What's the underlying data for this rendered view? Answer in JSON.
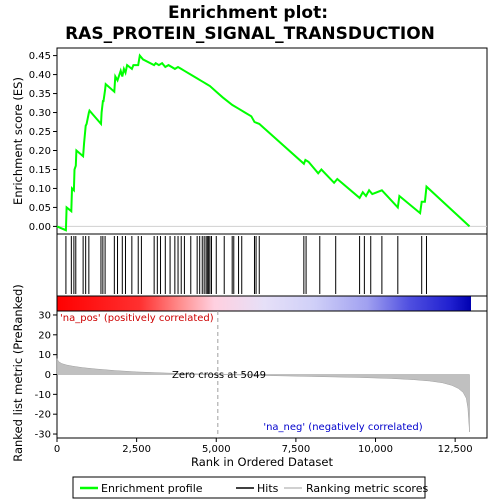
{
  "chart_data": [
    {
      "type": "line",
      "title_line1": "Enrichment plot:",
      "title_line2": "RAS_PROTEIN_SIGNAL_TRANSDUCTION",
      "ylabel": "Enrichment score (ES)",
      "xlim": [
        0,
        13500
      ],
      "ylim": [
        -0.02,
        0.47
      ],
      "yticks": [
        "0.00",
        "0.05",
        "0.10",
        "0.15",
        "0.20",
        "0.25",
        "0.30",
        "0.35",
        "0.40",
        "0.45"
      ],
      "ytick_values": [
        0,
        0.05,
        0.1,
        0.15,
        0.2,
        0.25,
        0.3,
        0.35,
        0.4,
        0.45
      ],
      "grid": false,
      "color": "#00ff00",
      "series": [
        {
          "name": "Enrichment profile",
          "x": [
            0,
            280,
            300,
            450,
            470,
            530,
            550,
            590,
            610,
            820,
            850,
            900,
            930,
            1000,
            1020,
            1380,
            1400,
            1440,
            1460,
            1510,
            1530,
            1800,
            1830,
            1900,
            2000,
            2050,
            2100,
            2150,
            2200,
            2350,
            2400,
            2550,
            2600,
            2700,
            3050,
            3100,
            3200,
            3300,
            3400,
            3500,
            3700,
            3800,
            3900,
            4000,
            4200,
            4400,
            4500,
            4600,
            4700,
            4800,
            5000,
            5200,
            5500,
            5700,
            5900,
            6100,
            6200,
            6350,
            7750,
            7800,
            7900,
            8200,
            8300,
            8700,
            8800,
            9500,
            9600,
            9700,
            9800,
            9900,
            10200,
            10700,
            10750,
            11400,
            11450,
            11550,
            11600,
            12950
          ],
          "y": [
            0.0,
            -0.01,
            0.05,
            0.04,
            0.1,
            0.095,
            0.15,
            0.16,
            0.2,
            0.185,
            0.22,
            0.265,
            0.27,
            0.3,
            0.305,
            0.27,
            0.3,
            0.33,
            0.33,
            0.36,
            0.375,
            0.355,
            0.395,
            0.385,
            0.41,
            0.395,
            0.415,
            0.405,
            0.425,
            0.415,
            0.425,
            0.425,
            0.45,
            0.44,
            0.425,
            0.43,
            0.425,
            0.43,
            0.42,
            0.425,
            0.415,
            0.42,
            0.415,
            0.41,
            0.4,
            0.39,
            0.385,
            0.38,
            0.375,
            0.37,
            0.355,
            0.34,
            0.32,
            0.31,
            0.3,
            0.29,
            0.275,
            0.27,
            0.165,
            0.175,
            0.17,
            0.14,
            0.15,
            0.115,
            0.125,
            0.075,
            0.09,
            0.08,
            0.095,
            0.085,
            0.095,
            0.05,
            0.08,
            0.035,
            0.065,
            0.065,
            0.105,
            0.0
          ]
        }
      ]
    },
    {
      "type": "heatmap",
      "name": "hits",
      "hits": [
        280,
        450,
        530,
        590,
        820,
        900,
        1000,
        1380,
        1440,
        1510,
        1800,
        1900,
        2050,
        2150,
        2350,
        2550,
        2650,
        3050,
        3150,
        3250,
        3400,
        3550,
        3700,
        3800,
        3900,
        4000,
        4200,
        4400,
        4480,
        4560,
        4620,
        4680,
        4720,
        4760,
        4800,
        4850,
        5000,
        5250,
        5500,
        5550,
        5700,
        5800,
        6200,
        6250,
        6350,
        7750,
        7820,
        8250,
        8750,
        9500,
        9650,
        9850,
        10200,
        10700,
        11450,
        11600
      ]
    },
    {
      "type": "area",
      "ylabel": "Ranked list metric (PreRanked)",
      "xlabel": "Rank in Ordered Dataset",
      "xlim": [
        0,
        13500
      ],
      "ylim": [
        -32,
        32
      ],
      "xticks": [
        "0",
        "2,500",
        "5,000",
        "7,500",
        "10,000",
        "12,500"
      ],
      "xtick_values": [
        0,
        2500,
        5000,
        7500,
        10000,
        12500
      ],
      "yticks": [
        "-30",
        "-20",
        "-10",
        "0",
        "10",
        "20",
        "30"
      ],
      "ytick_values": [
        -30,
        -20,
        -10,
        0,
        10,
        20,
        30
      ],
      "zero_cross_label": "Zero cross at 5049",
      "zero_cross": 5049,
      "pos_label": "'na_pos' (positively correlated)",
      "neg_label": "'na_neg' (negatively correlated)",
      "fill_color": "#c0c0c0",
      "x": [
        0,
        50,
        150,
        300,
        500,
        800,
        1200,
        1800,
        2500,
        3500,
        5049,
        6500,
        8000,
        9500,
        10500,
        11200,
        11700,
        12100,
        12400,
        12600,
        12750,
        12850,
        12900,
        12950
      ],
      "y": [
        8,
        6.5,
        5.5,
        4.8,
        4.2,
        3.5,
        2.8,
        2.0,
        1.3,
        0.7,
        0,
        -0.5,
        -1.0,
        -1.5,
        -2.0,
        -2.6,
        -3.3,
        -4.2,
        -5.5,
        -7,
        -9,
        -12,
        -17,
        -29
      ]
    }
  ],
  "legend": {
    "items": [
      {
        "label": "Enrichment profile",
        "color": "#00ff00"
      },
      {
        "label": "Hits",
        "color": "#000000"
      },
      {
        "label": "Ranking metric scores",
        "color": "#c0c0c0"
      }
    ]
  }
}
